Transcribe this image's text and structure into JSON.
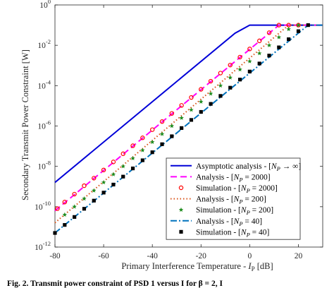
{
  "chart_data": {
    "type": "line",
    "xlabel": "Primary Interference Temperature - I_P [dB]",
    "ylabel": "Secondary Transmit Power Constraint [W]",
    "xlim": [
      -80,
      30
    ],
    "ylim_log10": [
      -12,
      0
    ],
    "yscale": "log",
    "grid": false,
    "legend_placement": "lower-right",
    "x_ticks": [
      "-80",
      "-60",
      "-40",
      "-20",
      "0",
      "20"
    ],
    "y_tick_exponents": [
      "0",
      "-2",
      "-4",
      "-6",
      "-8",
      "-10",
      "-12"
    ],
    "p_max_W": 0.1,
    "series": [
      {
        "name": "Asymptotic analysis - [N_P → ∞]",
        "color": "#0000d8",
        "dash": "solid",
        "marker": "none",
        "x": [
          -80,
          -6,
          0,
          30
        ],
        "y": [
          1.6e-09,
          0.04,
          0.1,
          0.1
        ]
      },
      {
        "name": "Analysis - [N_P = 2000]",
        "color": "#ff00ff",
        "dash": "dash",
        "marker": "none",
        "x": [
          -80,
          12,
          30
        ],
        "y": [
          6.3e-11,
          0.1,
          0.1
        ]
      },
      {
        "name": "Simulation - [N_P = 2000]",
        "color": "#ff0000",
        "dash": "none",
        "marker": "circle",
        "x": [
          -79,
          -76,
          -72,
          -68,
          -64,
          -60,
          -56,
          -52,
          -48,
          -44,
          -40,
          -36,
          -32,
          -28,
          -24,
          -20,
          -16,
          -12,
          -8,
          -4,
          0,
          4,
          8,
          12,
          16,
          20
        ],
        "y": [
          8e-11,
          1.7e-10,
          4.2e-10,
          1.1e-09,
          2.6e-09,
          6.6e-09,
          1.66e-08,
          4.2e-08,
          1.05e-07,
          2.6e-07,
          6.6e-07,
          1.66e-06,
          4.2e-06,
          1.05e-05,
          2.6e-05,
          6.6e-05,
          0.000166,
          0.00042,
          0.00105,
          0.0026,
          0.0066,
          0.0166,
          0.042,
          0.1,
          0.1,
          0.1
        ]
      },
      {
        "name": "Analysis - [N_P = 200]",
        "color": "#d95319",
        "dash": "dot",
        "marker": "none",
        "x": [
          -80,
          16,
          30
        ],
        "y": [
          1.6e-11,
          0.1,
          0.1
        ]
      },
      {
        "name": "Simulation - [N_P = 200]",
        "color": "#1e8c1e",
        "dash": "none",
        "marker": "star",
        "x": [
          -76,
          -72,
          -68,
          -64,
          -60,
          -56,
          -52,
          -48,
          -44,
          -40,
          -36,
          -32,
          -28,
          -24,
          -20,
          -16,
          -12,
          -8,
          -4,
          0,
          4,
          8,
          12,
          16,
          20
        ],
        "y": [
          4e-11,
          1e-10,
          2.5e-10,
          6.3e-10,
          1.6e-09,
          4e-09,
          1e-08,
          2.5e-08,
          6.3e-08,
          1.6e-07,
          4e-07,
          1e-06,
          2.5e-06,
          6.3e-06,
          1.6e-05,
          4e-05,
          0.0001,
          0.00025,
          0.00063,
          0.0016,
          0.004,
          0.01,
          0.025,
          0.063,
          0.1
        ]
      },
      {
        "name": "Analysis - [N_P = 40]",
        "color": "#0072bd",
        "dash": "dashdot",
        "marker": "none",
        "x": [
          -80,
          24,
          30
        ],
        "y": [
          5e-12,
          0.1,
          0.1
        ]
      },
      {
        "name": "Simulation - [N_P = 40]",
        "color": "#000000",
        "dash": "none",
        "marker": "square",
        "x": [
          -80,
          -76,
          -72,
          -68,
          -64,
          -60,
          -56,
          -52,
          -48,
          -44,
          -40,
          -36,
          -32,
          -28,
          -24,
          -20,
          -16,
          -12,
          -8,
          -4,
          0,
          4,
          8,
          12,
          16,
          20,
          24
        ],
        "y": [
          5e-12,
          1.25e-11,
          3.1e-11,
          7.9e-11,
          2e-10,
          5e-10,
          1.25e-09,
          3.1e-09,
          7.9e-09,
          2e-08,
          5e-08,
          1.25e-07,
          3.1e-07,
          7.9e-07,
          2e-06,
          5e-06,
          1.25e-05,
          3.1e-05,
          7.9e-05,
          0.0002,
          0.0005,
          0.00125,
          0.0031,
          0.0079,
          0.02,
          0.05,
          0.1
        ]
      }
    ]
  },
  "legend": {
    "items": [
      {
        "pre": "Asymptotic analysis - [",
        "var": "N",
        "sub": "P",
        "post": " → ∞]"
      },
      {
        "pre": "Analysis - [",
        "var": "N",
        "sub": "P",
        "post": " = 2000]"
      },
      {
        "pre": "Simulation - [",
        "var": "N",
        "sub": "P",
        "post": " = 2000]"
      },
      {
        "pre": "Analysis - [",
        "var": "N",
        "sub": "P",
        "post": " = 200]"
      },
      {
        "pre": "Simulation - [",
        "var": "N",
        "sub": "P",
        "post": " = 200]"
      },
      {
        "pre": "Analysis - [",
        "var": "N",
        "sub": "P",
        "post": " = 40]"
      },
      {
        "pre": "Simulation - [",
        "var": "N",
        "sub": "P",
        "post": " = 40]"
      }
    ]
  },
  "axes": {
    "xlabel_pre": "Primary Interference Temperature - ",
    "xlabel_var": "I",
    "xlabel_sub": "P",
    "xlabel_post": " [dB]",
    "ylabel": "Secondary Transmit Power Constraint [W]",
    "y_base": "10"
  },
  "caption": {
    "text": "Fig. 2.  Transmit power constraint of PSD 1 versus I  for β = 2, I"
  }
}
